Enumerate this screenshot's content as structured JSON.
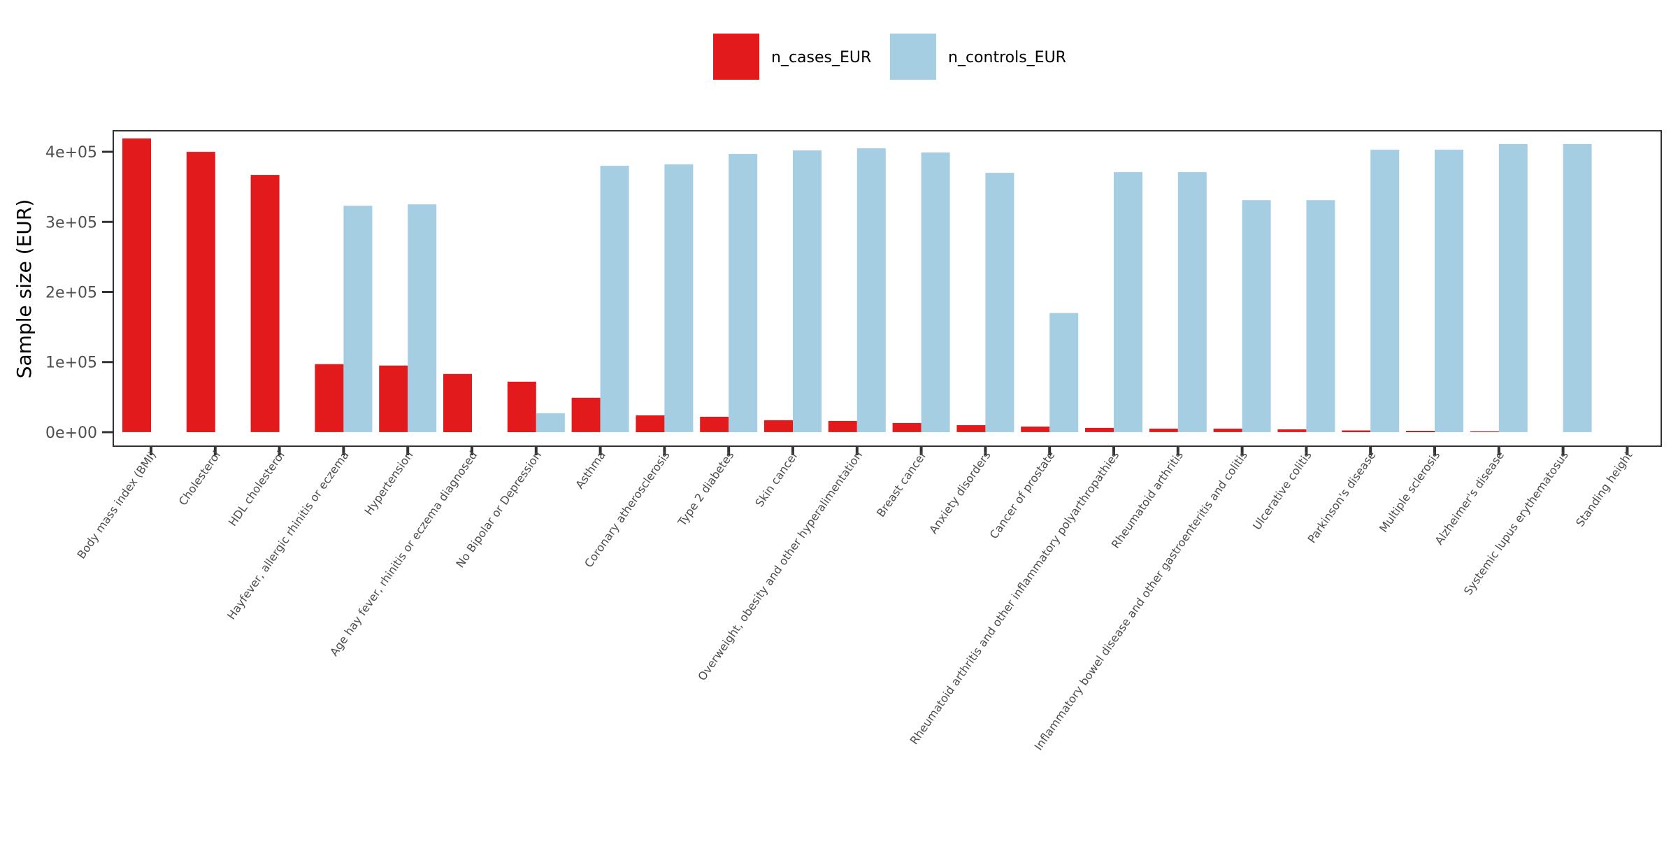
{
  "chart_data": {
    "type": "bar",
    "title": "",
    "xlabel": "",
    "ylabel": "Sample size (EUR)",
    "ylim": [
      -20000,
      430000
    ],
    "yticks": [
      0,
      100000,
      200000,
      300000,
      400000
    ],
    "ytick_labels": [
      "0e+00",
      "1e+05",
      "2e+05",
      "3e+05",
      "4e+05"
    ],
    "grid": false,
    "legend_position": "top",
    "categories": [
      "Body mass index (BMI)",
      "Cholesterol",
      "HDL cholesterol",
      "Hayfever, allergic rhinitis or eczema",
      "Hypertension",
      "Age hay fever, rhinitis or eczema diagnosed",
      "No Bipolar or Depression",
      "Asthma",
      "Coronary atherosclerosis",
      "Type 2 diabetes",
      "Skin cancer",
      "Overweight, obesity and other hyperalimentation",
      "Breast cancer",
      "Anxiety disorders",
      "Cancer of prostate",
      "Rheumatoid arthritis and other inflammatory polyarthropathies",
      "Rheumatoid arthritis",
      "Inflammatory bowel disease and other gastroenteritis and colitis",
      "Ulcerative colitis",
      "Parkinson's disease",
      "Multiple sclerosis",
      "Alzheimer's disease",
      "Systemic lupus erythematosus",
      "Standing height"
    ],
    "series": [
      {
        "name": "n_cases_EUR",
        "color": "#e31a1c",
        "values": [
          419000,
          400000,
          367000,
          97000,
          95000,
          83000,
          72000,
          49000,
          24000,
          22000,
          17000,
          16000,
          13000,
          10000,
          8000,
          6000,
          5000,
          5000,
          4000,
          2500,
          2000,
          1200,
          0,
          0
        ]
      },
      {
        "name": "n_controls_EUR",
        "color": "#a6cee3",
        "values": [
          0,
          0,
          0,
          323000,
          325000,
          0,
          27000,
          380000,
          382000,
          397000,
          402000,
          405000,
          399000,
          370000,
          170000,
          371000,
          371000,
          331000,
          331000,
          403000,
          403000,
          411000,
          411000,
          0
        ]
      }
    ]
  }
}
